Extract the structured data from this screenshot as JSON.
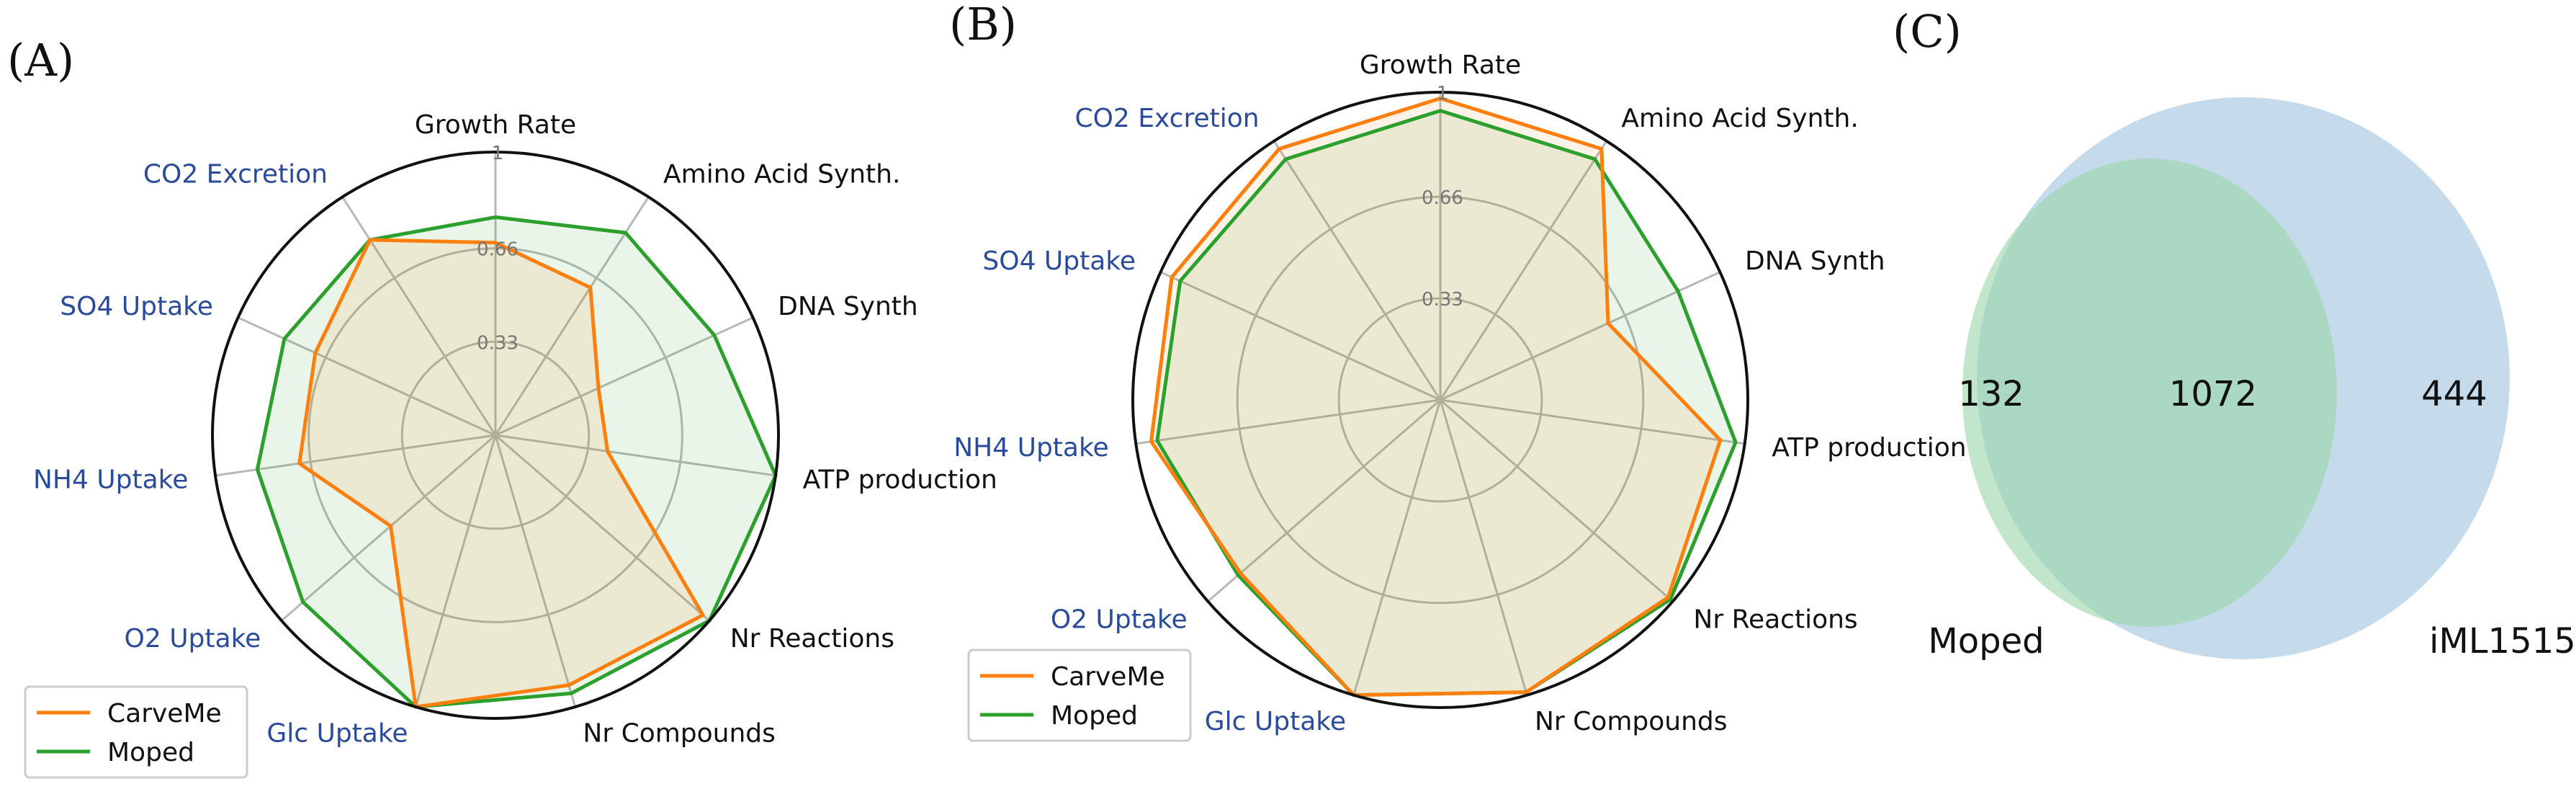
{
  "colors": {
    "carveme": "#ff7f0e",
    "moped": "#2ca02c",
    "external_label": "#2a4b9b",
    "internal_label": "#111111",
    "grid": "#b8b8b8",
    "venn_left": "#98d6a8",
    "venn_right": "#9ec3e0"
  },
  "chart_data": [
    {
      "panel": "(A)",
      "type": "radar",
      "r_ticks": [
        "0.33",
        "0.66",
        "1"
      ],
      "rlim": [
        0,
        1
      ],
      "axes": [
        {
          "label": "Growth Rate",
          "group": "internal"
        },
        {
          "label": "Amino Acid Synth.",
          "group": "internal"
        },
        {
          "label": "DNA Synth",
          "group": "internal"
        },
        {
          "label": "ATP production",
          "group": "internal"
        },
        {
          "label": "Nr Reactions",
          "group": "internal"
        },
        {
          "label": "Nr Compounds",
          "group": "internal"
        },
        {
          "label": "Glc Uptake",
          "group": "external"
        },
        {
          "label": "O2 Uptake",
          "group": "external"
        },
        {
          "label": "NH4 Uptake",
          "group": "external"
        },
        {
          "label": "SO4 Uptake",
          "group": "external"
        },
        {
          "label": "CO2 Excretion",
          "group": "external"
        }
      ],
      "series": [
        {
          "name": "CarveMe",
          "color_key": "carveme",
          "values": [
            0.68,
            0.62,
            0.4,
            0.4,
            0.97,
            0.92,
            1.0,
            0.49,
            0.7,
            0.7,
            0.82
          ]
        },
        {
          "name": "Moped",
          "color_key": "moped",
          "values": [
            0.77,
            0.85,
            0.85,
            1.0,
            1.0,
            0.95,
            1.0,
            0.9,
            0.85,
            0.82,
            0.82
          ]
        }
      ],
      "legend": {
        "position": "lower-left",
        "entries": [
          "CarveMe",
          "Moped"
        ]
      }
    },
    {
      "panel": "(B)",
      "type": "radar",
      "r_ticks": [
        "0.33",
        "0.66",
        "1"
      ],
      "rlim": [
        0,
        1
      ],
      "axes": [
        {
          "label": "Growth Rate",
          "group": "internal"
        },
        {
          "label": "Amino Acid Synth.",
          "group": "internal"
        },
        {
          "label": "DNA Synth",
          "group": "internal"
        },
        {
          "label": "ATP production",
          "group": "internal"
        },
        {
          "label": "Nr Reactions",
          "group": "internal"
        },
        {
          "label": "Nr Compounds",
          "group": "internal"
        },
        {
          "label": "Glc Uptake",
          "group": "external"
        },
        {
          "label": "O2 Uptake",
          "group": "external"
        },
        {
          "label": "NH4 Uptake",
          "group": "external"
        },
        {
          "label": "SO4 Uptake",
          "group": "external"
        },
        {
          "label": "CO2 Excretion",
          "group": "external"
        }
      ],
      "series": [
        {
          "name": "CarveMe",
          "color_key": "carveme",
          "values": [
            0.98,
            0.97,
            0.6,
            0.92,
            0.98,
            0.99,
            1.0,
            0.86,
            0.95,
            0.96,
            0.97
          ]
        },
        {
          "name": "Moped",
          "color_key": "moped",
          "values": [
            0.94,
            0.93,
            0.85,
            0.97,
            0.99,
            0.99,
            1.0,
            0.87,
            0.93,
            0.93,
            0.93
          ]
        }
      ],
      "legend": {
        "position": "upper-left",
        "entries": [
          "CarveMe",
          "Moped"
        ]
      }
    },
    {
      "panel": "(C)",
      "type": "venn",
      "sets": [
        "Moped",
        "iML1515"
      ],
      "only_left": "132",
      "intersection": "1072",
      "only_right": "444"
    }
  ]
}
